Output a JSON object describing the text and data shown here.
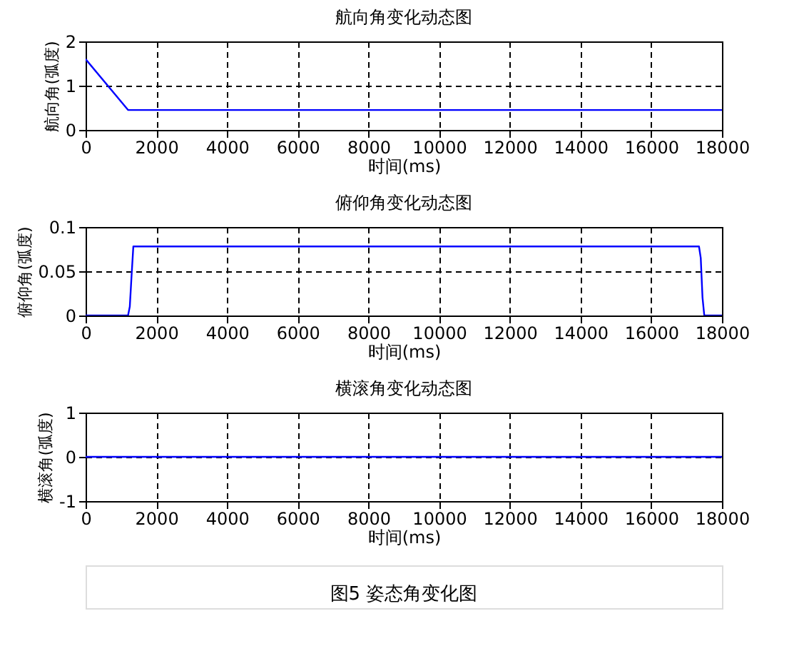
{
  "chart_data": [
    {
      "type": "line",
      "title": "航向角变化动态图",
      "xlabel": "时间(ms)",
      "ylabel": "航向角(弧度)",
      "x": [
        0,
        1200,
        18000
      ],
      "series": [
        {
          "color": "#0000ff",
          "values": [
            1.6,
            0.45,
            0.45
          ]
        }
      ],
      "xlim": [
        0,
        18000
      ],
      "xticks": [
        0,
        2000,
        4000,
        6000,
        8000,
        10000,
        12000,
        14000,
        16000,
        18000
      ],
      "ylim": [
        0,
        2
      ],
      "yticks": [
        0,
        1,
        2
      ],
      "grid": true,
      "line_style": "solid"
    },
    {
      "type": "line",
      "title": "俯仰角变化动态图",
      "xlabel": "时间(ms)",
      "ylabel": "俯仰角(弧度)",
      "x": [
        0,
        1200,
        1250,
        1300,
        1350,
        17350,
        17400,
        17450,
        17500,
        18000
      ],
      "series": [
        {
          "color": "#0000ff",
          "values": [
            0,
            0,
            0.01,
            0.045,
            0.078,
            0.078,
            0.065,
            0.02,
            0,
            0
          ]
        }
      ],
      "xlim": [
        0,
        18000
      ],
      "xticks": [
        0,
        2000,
        4000,
        6000,
        8000,
        10000,
        12000,
        14000,
        16000,
        18000
      ],
      "ylim": [
        0,
        0.1
      ],
      "yticks": [
        0,
        0.05,
        0.1
      ],
      "grid": true,
      "line_style": "solid"
    },
    {
      "type": "line",
      "title": "横滚角变化动态图",
      "xlabel": "时间(ms)",
      "ylabel": "横滚角(弧度)",
      "x": [
        0,
        18000
      ],
      "series": [
        {
          "color": "#0000ff",
          "values": [
            0,
            0
          ]
        }
      ],
      "xlim": [
        0,
        18000
      ],
      "xticks": [
        0,
        2000,
        4000,
        6000,
        8000,
        10000,
        12000,
        14000,
        16000,
        18000
      ],
      "ylim": [
        -1,
        1
      ],
      "yticks": [
        -1,
        0,
        1
      ],
      "grid": true,
      "line_style": "solid",
      "annotations": [
        "图5 姿态角变化图"
      ]
    }
  ]
}
